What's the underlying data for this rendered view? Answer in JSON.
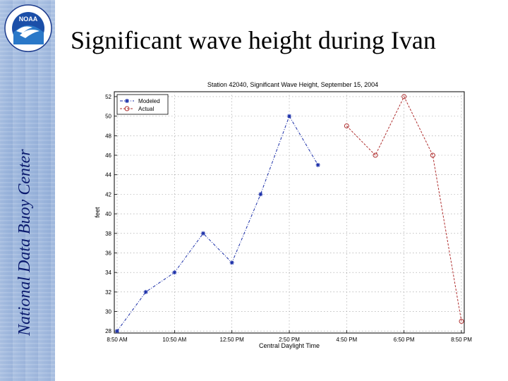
{
  "slide": {
    "title": "Significant wave height during Ivan",
    "sidebar_text": "National Data Buoy Center",
    "logo_text": "NOAA"
  },
  "colors": {
    "sidebar": "#a9c0e2",
    "sidebar_text": "#0a1a6e",
    "modeled": "#1a2ea8",
    "actual": "#b03030"
  },
  "chart_data": {
    "type": "line",
    "title": "Station 42040, Significant Wave Height, September 15, 2004",
    "xlabel": "Central Daylight Time",
    "ylabel": "feet",
    "x_ticks": [
      "8:50 AM",
      "10:50 AM",
      "12:50 PM",
      "2:50 PM",
      "4:50 PM",
      "6:50 PM",
      "8:50 PM"
    ],
    "y_ticks": [
      28,
      30,
      32,
      34,
      36,
      38,
      40,
      42,
      44,
      46,
      48,
      50,
      52
    ],
    "ylim": [
      27.8,
      52.5
    ],
    "xlim": [
      0,
      12
    ],
    "grid": true,
    "legend_position": "top-left",
    "series": [
      {
        "name": "Modeled",
        "marker": "*",
        "line": "dash-dot",
        "x": [
          0,
          1,
          2,
          3,
          4,
          5,
          6,
          7
        ],
        "values": [
          28.0,
          32.0,
          34.0,
          38.0,
          35.0,
          42.0,
          50.0,
          45.0
        ]
      },
      {
        "name": "Actual",
        "marker": "o",
        "line": "dashed",
        "x": [
          8,
          9,
          10,
          11,
          12
        ],
        "values": [
          49.0,
          46.0,
          52.0,
          46.0,
          29.0
        ]
      }
    ]
  }
}
